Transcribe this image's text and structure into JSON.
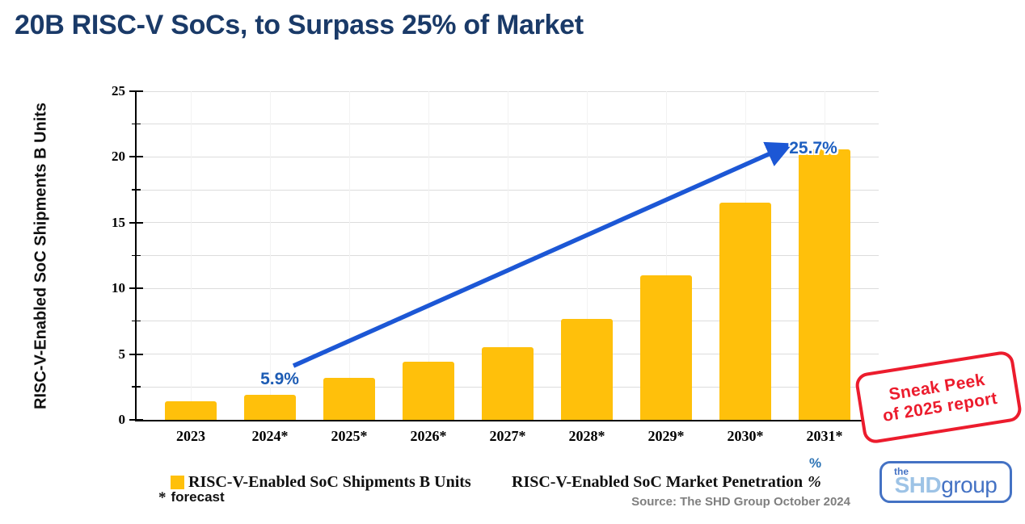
{
  "slide": {
    "title": "20B RISC-V SoCs, to Surpass 25% of Market",
    "source": "Source: The SHD Group October 2024",
    "forecast_note": {
      "symbol": "*",
      "label": "forecast"
    },
    "stamp": {
      "line1": "Sneak Peek",
      "line2": "of 2025 report",
      "color": "#ec1c2d"
    },
    "logo": {
      "the": "the",
      "shd": "SHD",
      "group": "group",
      "border_color": "#4472c4",
      "shd_color": "#9dc3e6"
    }
  },
  "chart_data": {
    "type": "bar",
    "title": "",
    "xlabel": "",
    "ylabel": "RISC-V-Enabled SoC Shipments B Units",
    "categories": [
      "2023",
      "2024*",
      "2025*",
      "2026*",
      "2027*",
      "2028*",
      "2029*",
      "2030*",
      "2031*"
    ],
    "values": [
      1.4,
      1.9,
      3.2,
      4.4,
      5.5,
      7.7,
      11.0,
      16.5,
      20.6
    ],
    "ylim": [
      0,
      25
    ],
    "y_major_ticks": [
      0,
      5,
      10,
      15,
      20,
      25
    ],
    "y_minor_step": 2.5,
    "grid": "horizontal",
    "bar_color": "#ffc00b",
    "legend_position": "bottom",
    "legend": [
      {
        "label": "RISC-V-Enabled SoC Shipments B Units",
        "marker": "yellow-square",
        "marker_color": "#ffc00b"
      },
      {
        "label": "RISC-V-Enabled SoC Market Penetration",
        "suffix": "%",
        "marker": "blue-percent",
        "marker_glyph": "%",
        "marker_color": "#2e74b5"
      }
    ],
    "annotations": [
      {
        "text": "5.9%",
        "category": "2024*",
        "placement": "above"
      },
      {
        "text": "25.7%",
        "category": "2031*",
        "placement": "on-top"
      }
    ],
    "trend_arrow": {
      "from_category": "2024*",
      "to_category": "2031*",
      "color": "#1c57d5"
    }
  }
}
